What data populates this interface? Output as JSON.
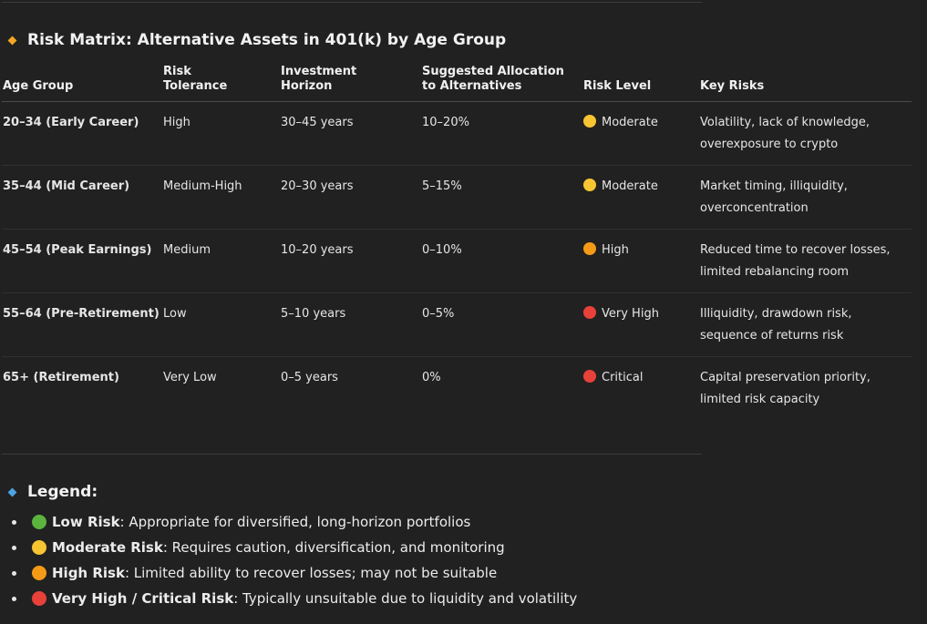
{
  "risk_section": {
    "title": "Risk Matrix: Alternative Assets in 401(k) by Age Group",
    "icon": "orange-diamond-icon"
  },
  "table": {
    "headers": {
      "age_group": "Age Group",
      "risk_tolerance": "Risk Tolerance",
      "investment_horizon": "Investment Horizon",
      "suggested_allocation": "Suggested Allocation to Alternatives",
      "risk_level": "Risk Level",
      "key_risks": "Key Risks"
    },
    "rows": [
      {
        "age_group": "20–34 (Early Career)",
        "risk_tolerance": "High",
        "investment_horizon": "30–45 years",
        "suggested_allocation": "10–20%",
        "risk_level": "Moderate",
        "risk_color": "#f7c531",
        "key_risks": "Volatility, lack of knowledge, overexposure to crypto"
      },
      {
        "age_group": "35–44 (Mid Career)",
        "risk_tolerance": "Medium-High",
        "investment_horizon": "20–30 years",
        "suggested_allocation": "5–15%",
        "risk_level": "Moderate",
        "risk_color": "#f7c531",
        "key_risks": "Market timing, illiquidity, overconcentration"
      },
      {
        "age_group": "45–54 (Peak Earnings)",
        "risk_tolerance": "Medium",
        "investment_horizon": "10–20 years",
        "suggested_allocation": "0–10%",
        "risk_level": "High",
        "risk_color": "#f59a16",
        "key_risks": "Reduced time to recover losses, limited rebalancing room"
      },
      {
        "age_group": "55–64 (Pre-Retirement)",
        "risk_tolerance": "Low",
        "investment_horizon": "5–10 years",
        "suggested_allocation": "0–5%",
        "risk_level": "Very High",
        "risk_color": "#e8413a",
        "key_risks": "Illiquidity, drawdown risk, sequence of returns risk"
      },
      {
        "age_group": "65+ (Retirement)",
        "risk_tolerance": "Very Low",
        "investment_horizon": "0–5 years",
        "suggested_allocation": "0%",
        "risk_level": "Critical",
        "risk_color": "#e8413a",
        "key_risks": "Capital preservation priority, limited risk capacity"
      }
    ]
  },
  "legend": {
    "title": "Legend:",
    "icon": "blue-diamond-icon",
    "items": [
      {
        "label": "Low Risk",
        "text": ": Appropriate for diversified, long-horizon portfolios",
        "color": "#5cb33e"
      },
      {
        "label": "Moderate Risk",
        "text": ": Requires caution, diversification, and monitoring",
        "color": "#f7c531"
      },
      {
        "label": "High Risk",
        "text": ": Limited ability to recover losses; may not be suitable",
        "color": "#f59a16"
      },
      {
        "label": "Very High / Critical Risk",
        "text": ": Typically unsuitable due to liquidity and volatility",
        "color": "#e8413a"
      }
    ]
  }
}
